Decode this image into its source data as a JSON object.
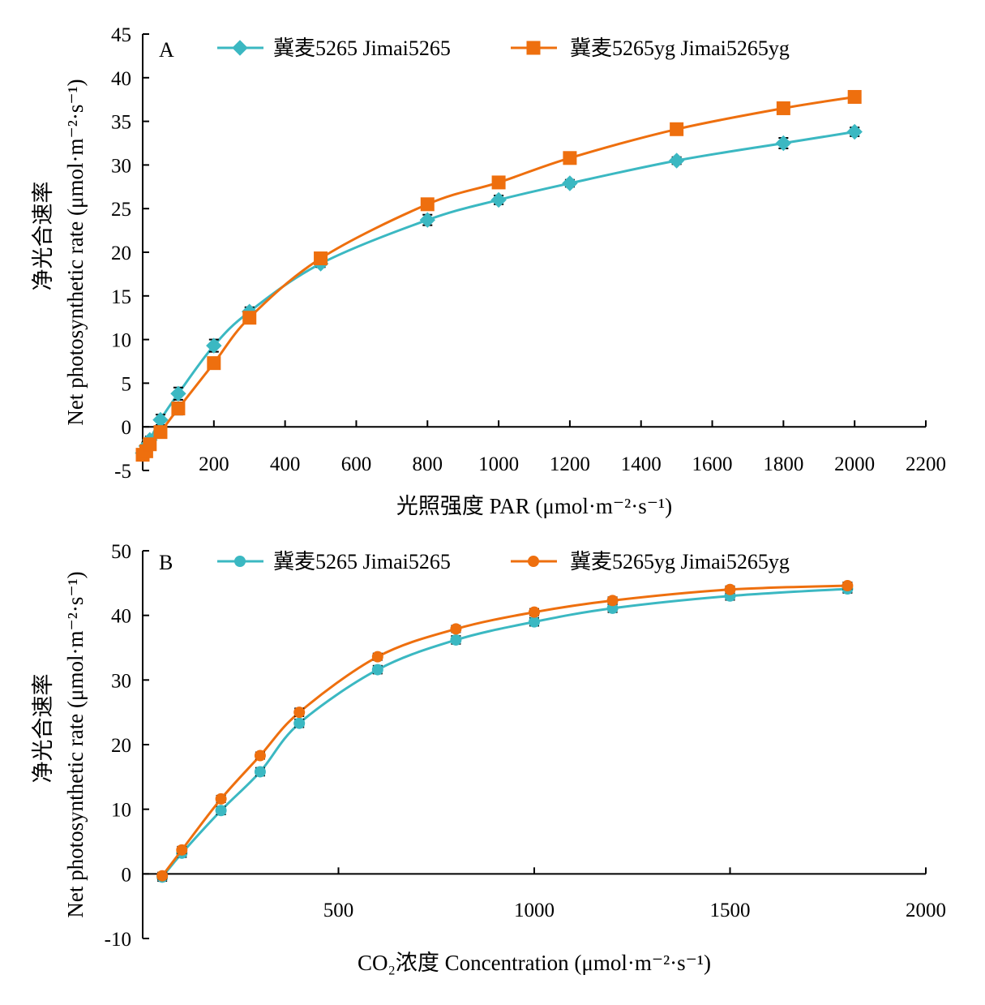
{
  "chart_data": [
    {
      "type": "line",
      "panel_label": "A",
      "xlabel": "光照强度 PAR (μmol·m⁻²·s⁻¹)",
      "ylabel_cn": "净光合速率",
      "ylabel_en": "Net photosynthetic rate (μmol·m⁻²·s⁻¹)",
      "xlim": [
        0,
        2200
      ],
      "ylim": [
        -5,
        45
      ],
      "x_ticks": [
        200,
        400,
        600,
        800,
        1000,
        1200,
        1400,
        1600,
        1800,
        2000,
        2200
      ],
      "y_ticks": [
        -5,
        0,
        5,
        10,
        15,
        20,
        25,
        30,
        35,
        40,
        45
      ],
      "legend_position": "top",
      "series": [
        {
          "name": "冀麦5265 Jimai5265",
          "color": "#3bb8c2",
          "marker": "diamond",
          "x": [
            0,
            10,
            20,
            50,
            100,
            200,
            300,
            500,
            800,
            1000,
            1200,
            1500,
            1800,
            2000
          ],
          "y": [
            -3.0,
            -2.2,
            -1.5,
            0.8,
            3.8,
            9.3,
            13.2,
            18.7,
            23.7,
            26.0,
            27.9,
            30.5,
            32.5,
            33.8
          ],
          "err": [
            0.4,
            0.4,
            0.4,
            0.6,
            0.7,
            0.7,
            0.5,
            0.4,
            0.6,
            0.5,
            0.4,
            0.4,
            0.6,
            0.5
          ]
        },
        {
          "name": "冀麦5265yg  Jimai5265yg",
          "color": "#ee6f0e",
          "marker": "square",
          "x": [
            0,
            10,
            20,
            50,
            100,
            200,
            300,
            500,
            800,
            1000,
            1200,
            1500,
            1800,
            2000
          ],
          "y": [
            -3.2,
            -2.8,
            -2.0,
            -0.6,
            2.1,
            7.3,
            12.5,
            19.3,
            25.5,
            28.0,
            30.8,
            34.1,
            36.5,
            37.8
          ],
          "err": [
            0.4,
            0.4,
            0.4,
            0.5,
            0.7,
            0.5,
            0.6,
            0.4,
            0.5,
            0.5,
            0.6,
            0.6,
            0.6,
            0.5
          ]
        }
      ]
    },
    {
      "type": "line",
      "panel_label": "B",
      "xlabel": "CO₂浓度 Concentration (μmol·m⁻²·s⁻¹)",
      "ylabel_cn": "净光合速率",
      "ylabel_en": "Net photosynthetic rate (μmol·m⁻²·s⁻¹)",
      "xlim": [
        0,
        2000
      ],
      "ylim": [
        -10,
        50
      ],
      "x_ticks": [
        500,
        1000,
        1500,
        2000
      ],
      "y_ticks": [
        -10,
        0,
        10,
        20,
        30,
        40,
        50
      ],
      "legend_position": "top",
      "series": [
        {
          "name": "冀麦5265 Jimai5265",
          "color": "#3bb8c2",
          "marker": "circle",
          "x": [
            50,
            100,
            200,
            300,
            400,
            600,
            800,
            1000,
            1200,
            1500,
            1800
          ],
          "y": [
            -0.5,
            3.2,
            9.8,
            15.8,
            23.3,
            31.6,
            36.2,
            39.0,
            41.1,
            43.0,
            44.1
          ],
          "err": [
            0.6,
            0.6,
            0.6,
            0.6,
            0.6,
            0.6,
            0.6,
            0.6,
            0.6,
            0.6,
            0.6
          ]
        },
        {
          "name": "冀麦5265yg  Jimai5265yg",
          "color": "#ee6f0e",
          "marker": "circle",
          "x": [
            50,
            100,
            200,
            300,
            400,
            600,
            800,
            1000,
            1200,
            1500,
            1800
          ],
          "y": [
            -0.3,
            3.7,
            11.6,
            18.3,
            25.0,
            33.6,
            37.9,
            40.5,
            42.3,
            44.0,
            44.6
          ],
          "err": [
            0.5,
            0.5,
            0.5,
            0.5,
            0.6,
            0.5,
            0.5,
            0.5,
            0.5,
            0.5,
            0.5
          ]
        }
      ]
    }
  ]
}
